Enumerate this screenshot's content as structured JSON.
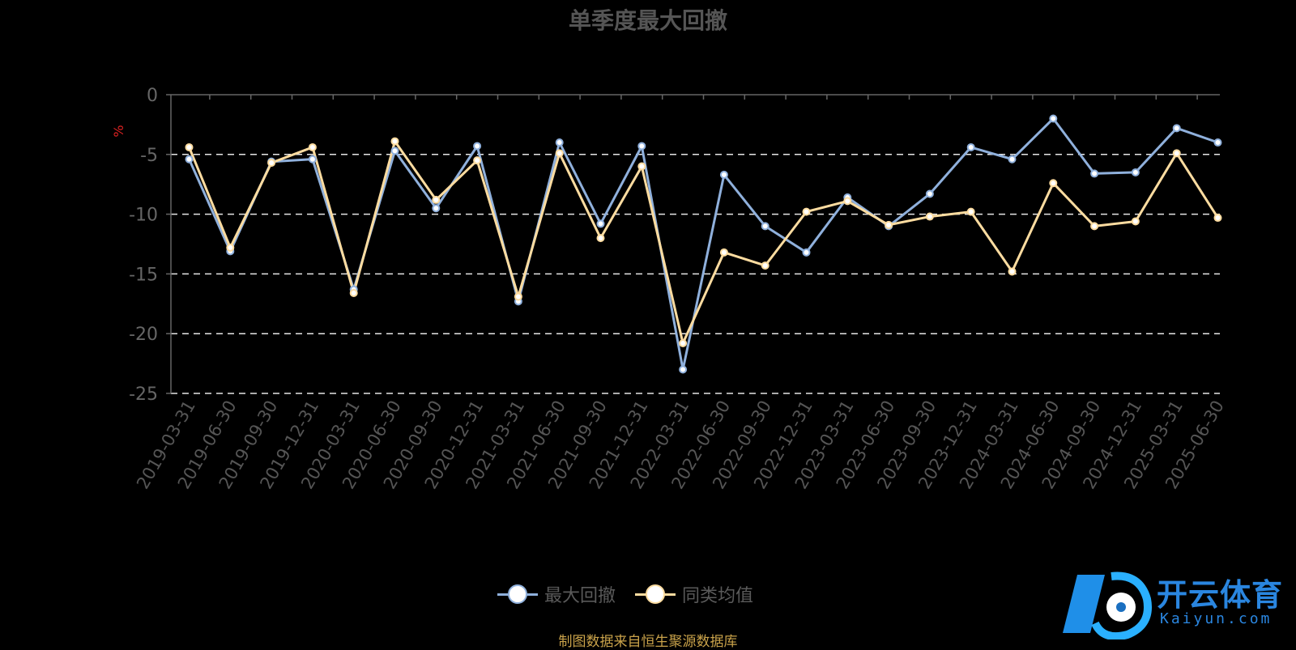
{
  "title": "单季度最大回撤",
  "source_note": "制图数据来自恒生聚源数据库",
  "watermark": {
    "brand": "开云体育",
    "domain": "Kaiyun.com"
  },
  "colors": {
    "series1": "#8fb0dc",
    "series2": "#fddca0",
    "axis": "#666",
    "grid": "#e6e6e6",
    "unit": "#d22"
  },
  "chart_data": {
    "type": "line",
    "title": "单季度最大回撤",
    "ylabel": "%",
    "ylim": [
      -25,
      0
    ],
    "yticks": [
      0,
      -5,
      -10,
      -15,
      -20,
      -25
    ],
    "grid": true,
    "legend_position": "bottom",
    "x": [
      "2019-03-31",
      "2019-06-30",
      "2019-09-30",
      "2019-12-31",
      "2020-03-31",
      "2020-06-30",
      "2020-09-30",
      "2020-12-31",
      "2021-03-31",
      "2021-06-30",
      "2021-09-30",
      "2021-12-31",
      "2022-03-31",
      "2022-06-30",
      "2022-09-30",
      "2022-12-31",
      "2023-03-31",
      "2023-06-30",
      "2023-09-30",
      "2023-12-31",
      "2024-03-31",
      "2024-06-30",
      "2024-09-30",
      "2024-12-31",
      "2025-03-31",
      "2025-06-30"
    ],
    "series": [
      {
        "name": "最大回撤",
        "values": [
          -5.4,
          -13.1,
          -5.6,
          -5.4,
          -16.3,
          -4.7,
          -9.5,
          -4.3,
          -17.3,
          -4.0,
          -10.8,
          -4.3,
          -23.0,
          -6.7,
          -11.0,
          -13.2,
          -8.6,
          -11.0,
          -8.3,
          -4.4,
          -5.4,
          -2.0,
          -6.6,
          -6.5,
          -2.8,
          -4.0
        ]
      },
      {
        "name": "同类均值",
        "values": [
          -4.4,
          -12.8,
          -5.7,
          -4.4,
          -16.6,
          -3.9,
          -8.8,
          -5.5,
          -16.9,
          -4.9,
          -12.0,
          -6.0,
          -20.8,
          -13.2,
          -14.3,
          -9.8,
          -8.9,
          -10.9,
          -10.2,
          -9.8,
          -14.8,
          -7.4,
          -11.0,
          -10.6,
          -4.9,
          -10.3
        ]
      }
    ]
  }
}
